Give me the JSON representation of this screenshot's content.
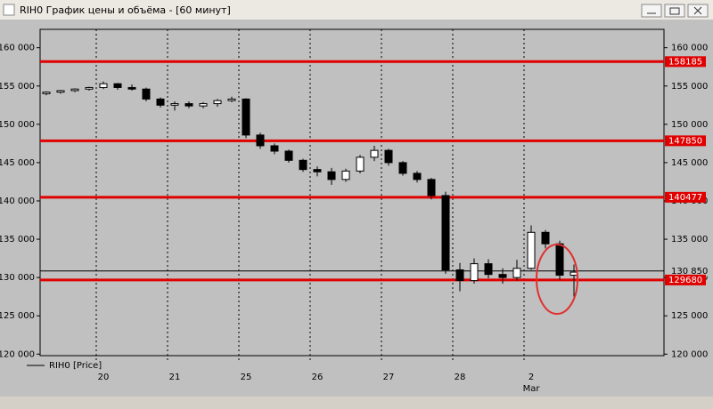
{
  "window_title": "RIH0 График цены и объёма - [60 минут]",
  "chart_data": {
    "type": "candlestick",
    "legend": "RIH0 [Price]",
    "categories": [
      null,
      null,
      null,
      null,
      "20",
      null,
      null,
      null,
      null,
      "21",
      null,
      null,
      null,
      null,
      "25",
      null,
      null,
      null,
      null,
      "26",
      null,
      null,
      null,
      null,
      "27",
      null,
      null,
      null,
      null,
      "28",
      null,
      null,
      null,
      null,
      "2",
      null,
      null,
      null
    ],
    "x_sublabels": [
      null,
      null,
      null,
      null,
      null,
      null,
      null,
      null,
      null,
      null,
      null,
      null,
      null,
      null,
      null,
      null,
      null,
      null,
      null,
      null,
      null,
      null,
      null,
      null,
      null,
      null,
      null,
      null,
      null,
      null,
      null,
      null,
      null,
      null,
      "Mar",
      null,
      null,
      null
    ],
    "open": [
      154000,
      154200,
      154400,
      154600,
      154800,
      155300,
      154800,
      154600,
      153300,
      152500,
      152700,
      152400,
      152700,
      153100,
      153300,
      148600,
      147200,
      146500,
      145300,
      144100,
      143800,
      142800,
      143900,
      145700,
      146600,
      145000,
      143600,
      142800,
      140700,
      131000,
      129600,
      131800,
      130400,
      130000,
      131200,
      135900,
      134400,
      130300
    ],
    "high": [
      154300,
      154500,
      154700,
      154900,
      155600,
      155400,
      155200,
      154800,
      153500,
      153000,
      153000,
      152900,
      153300,
      153600,
      153400,
      148900,
      147500,
      146700,
      145500,
      144500,
      144300,
      144200,
      146000,
      147200,
      146800,
      145200,
      143900,
      143000,
      141200,
      131900,
      132500,
      132400,
      131200,
      132300,
      136800,
      136200,
      134800,
      131700
    ],
    "low": [
      153800,
      154000,
      154200,
      154400,
      154600,
      154500,
      154400,
      153000,
      152200,
      151800,
      152100,
      152100,
      152300,
      152900,
      148200,
      146800,
      146100,
      145000,
      143800,
      143200,
      142100,
      142500,
      143600,
      145200,
      144600,
      143300,
      142400,
      140200,
      130500,
      128200,
      129200,
      129900,
      129200,
      129600,
      131000,
      133800,
      129700,
      127500
    ],
    "close": [
      154200,
      154400,
      154600,
      154800,
      155300,
      154800,
      154600,
      153300,
      152500,
      152700,
      152400,
      152700,
      153100,
      153300,
      148600,
      147200,
      146500,
      145300,
      144100,
      143800,
      142800,
      143900,
      145700,
      146600,
      145000,
      143600,
      142800,
      140700,
      131000,
      129600,
      131800,
      130400,
      130000,
      131200,
      135900,
      134400,
      130300,
      130700
    ],
    "up_color": "#ffffff",
    "down_color": "#000000",
    "levels": [
      158185,
      147850,
      140477,
      129680
    ],
    "level_color": "#e00000",
    "last_price": {
      "value": 130850,
      "label": "130 850"
    },
    "ylim": [
      119800,
      162400
    ],
    "yticks": [
      {
        "value": 120000,
        "label": "120 000"
      },
      {
        "value": 125000,
        "label": "125 000"
      },
      {
        "value": 130000,
        "label": "130 000"
      },
      {
        "value": 135000,
        "label": "135 000"
      },
      {
        "value": 140000,
        "label": "140 000"
      },
      {
        "value": 145000,
        "label": "145 000"
      },
      {
        "value": 150000,
        "label": "150 000"
      },
      {
        "value": 155000,
        "label": "155 000"
      },
      {
        "value": 160000,
        "label": "160 000"
      }
    ]
  }
}
